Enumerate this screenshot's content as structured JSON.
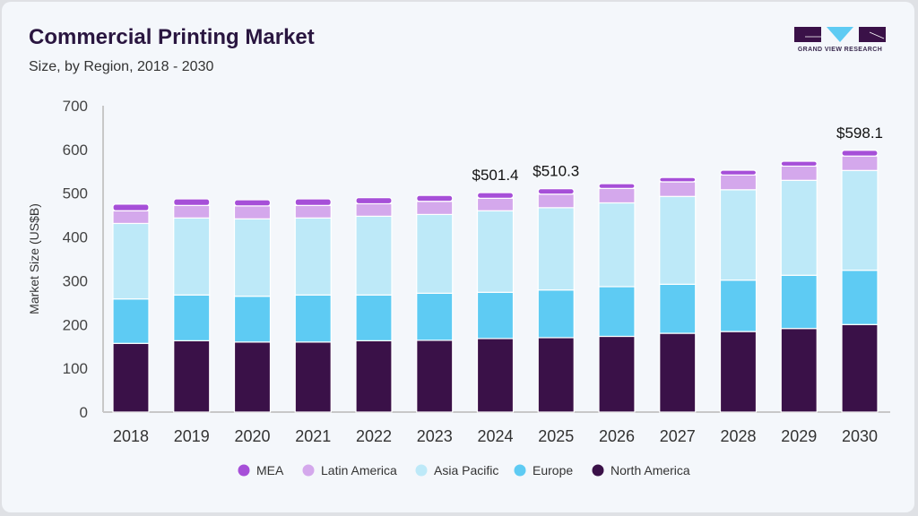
{
  "header": {
    "title": "Commercial Printing Market",
    "subtitle": "Size, by Region, 2018 - 2030",
    "logo_text": "GRAND VIEW RESEARCH"
  },
  "chart_data": {
    "type": "bar",
    "stacked": true,
    "ylabel": "Market Size (US$B)",
    "xlabel": "",
    "ylim": [
      0,
      700
    ],
    "yticks": [
      0,
      100,
      200,
      300,
      400,
      500,
      600,
      700
    ],
    "grid": false,
    "legend_position": "bottom",
    "categories": [
      "2018",
      "2019",
      "2020",
      "2021",
      "2022",
      "2023",
      "2024",
      "2025",
      "2026",
      "2027",
      "2028",
      "2029",
      "2030"
    ],
    "series": [
      {
        "name": "North America",
        "color": "#3a1148",
        "values": [
          157,
          163,
          160,
          160,
          163,
          164,
          168,
          170,
          173,
          180,
          184,
          191,
          200
        ]
      },
      {
        "name": "Europe",
        "color": "#5ecbf3",
        "values": [
          101.5,
          104.5,
          104.7,
          107.5,
          104.5,
          107.5,
          105.7,
          109,
          113.6,
          112,
          117.5,
          121.6,
          124
        ]
      },
      {
        "name": "Asia Pacific",
        "color": "#bde9f8",
        "values": [
          172.5,
          176,
          176.8,
          176,
          180,
          180,
          186.3,
          188,
          191.4,
          200.7,
          206.5,
          216.9,
          228
        ]
      },
      {
        "name": "Latin America",
        "color": "#d4a8ec",
        "values": [
          29,
          28.5,
          29.5,
          28.5,
          28.5,
          30,
          28.5,
          31,
          33,
          33.3,
          33.8,
          32.5,
          33
        ]
      },
      {
        "name": "MEA",
        "color": "#a64fd8",
        "values": [
          15,
          15,
          14,
          15,
          14,
          13.5,
          12.9,
          12.3,
          11,
          10,
          10.9,
          11,
          13.1
        ]
      }
    ],
    "legend_order": [
      "MEA",
      "Latin America",
      "Asia Pacific",
      "Europe",
      "North America"
    ],
    "annotations": [
      {
        "category": "2024",
        "label": "$501.4"
      },
      {
        "category": "2025",
        "label": "$510.3"
      },
      {
        "category": "2030",
        "label": "$598.1"
      }
    ]
  }
}
